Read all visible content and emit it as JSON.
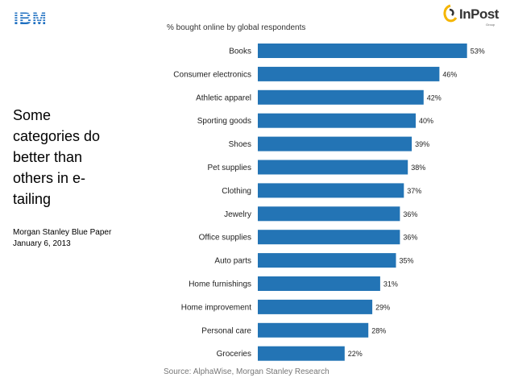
{
  "logos": {
    "ibm_text": "IBM",
    "ibm_color": "#1f70c1",
    "inpost_text": "InPost",
    "inpost_sub": "Group",
    "inpost_accent": "#f5b500"
  },
  "slide": {
    "headline": "Some categories do better than others in e-tailing",
    "source_line1": "Morgan Stanley Blue Paper",
    "source_line2": "January 6, 2013"
  },
  "chart_data": {
    "type": "bar",
    "orientation": "horizontal",
    "title": "% bought online by global respondents",
    "source": "Source: AlphaWise, Morgan Stanley Research",
    "categories": [
      "Books",
      "Consumer electronics",
      "Athletic apparel",
      "Sporting goods",
      "Shoes",
      "Pet supplies",
      "Clothing",
      "Jewelry",
      "Office supplies",
      "Auto parts",
      "Home furnishings",
      "Home improvement",
      "Personal care",
      "Groceries"
    ],
    "values": [
      53,
      46,
      42,
      40,
      39,
      38,
      37,
      36,
      36,
      35,
      31,
      29,
      28,
      22
    ],
    "value_labels": [
      "53%",
      "46%",
      "42%",
      "40%",
      "39%",
      "38%",
      "37%",
      "36%",
      "36%",
      "35%",
      "31%",
      "29%",
      "28%",
      "22%"
    ],
    "bar_color": "#2374b5",
    "grid": false,
    "legend": "none"
  }
}
